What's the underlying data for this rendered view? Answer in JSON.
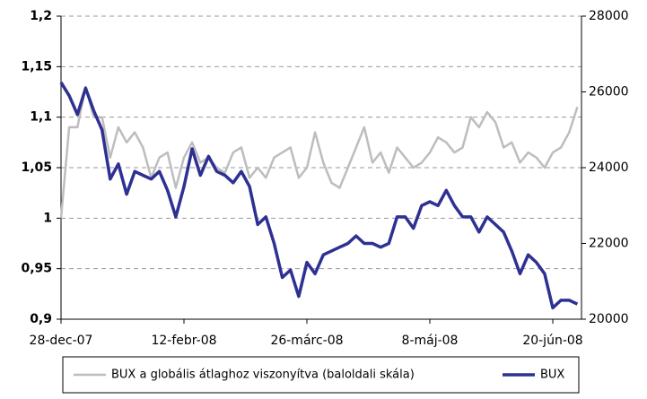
{
  "chart_data": {
    "type": "line",
    "categories": [
      "28-dec-07",
      null,
      null,
      null,
      null,
      null,
      null,
      null,
      null,
      null,
      null,
      null,
      null,
      null,
      null,
      "12-febr-08",
      null,
      null,
      null,
      null,
      null,
      null,
      null,
      null,
      null,
      null,
      null,
      null,
      null,
      null,
      "26-márc-08",
      null,
      null,
      null,
      null,
      null,
      null,
      null,
      null,
      null,
      null,
      null,
      null,
      null,
      null,
      "8-máj-08",
      null,
      null,
      null,
      null,
      null,
      null,
      null,
      null,
      null,
      null,
      null,
      null,
      null,
      null,
      "20-jún-08",
      null,
      null,
      null
    ],
    "series": [
      {
        "name": "BUX a globális átlaghoz viszonyítva (baloldali skála)",
        "color": "#bdbdbd",
        "axis": "y",
        "values": [
          1.0,
          1.09,
          1.09,
          1.13,
          1.1,
          1.1,
          1.06,
          1.09,
          1.075,
          1.085,
          1.07,
          1.04,
          1.06,
          1.065,
          1.03,
          1.06,
          1.075,
          1.055,
          1.06,
          1.05,
          1.045,
          1.065,
          1.07,
          1.04,
          1.05,
          1.04,
          1.06,
          1.065,
          1.07,
          1.04,
          1.05,
          1.085,
          1.055,
          1.035,
          1.03,
          1.05,
          1.07,
          1.09,
          1.055,
          1.065,
          1.045,
          1.07,
          1.06,
          1.05,
          1.055,
          1.065,
          1.08,
          1.075,
          1.065,
          1.07,
          1.1,
          1.09,
          1.105,
          1.095,
          1.07,
          1.075,
          1.055,
          1.065,
          1.06,
          1.05,
          1.065,
          1.07,
          1.085,
          1.11
        ]
      },
      {
        "name": "BUX",
        "color": "#2e3192",
        "axis": "y2",
        "values": [
          26250,
          25900,
          25400,
          26100,
          25500,
          25000,
          23700,
          24100,
          23300,
          23900,
          23800,
          23700,
          23900,
          23400,
          22700,
          23500,
          24500,
          23800,
          24300,
          23900,
          23800,
          23600,
          23900,
          23500,
          22500,
          22700,
          22000,
          21100,
          21300,
          20600,
          21500,
          21200,
          21700,
          21800,
          21900,
          22000,
          22200,
          22000,
          22000,
          21900,
          22000,
          22700,
          22700,
          22400,
          23000,
          23100,
          23000,
          23400,
          23000,
          22700,
          22700,
          22300,
          22700,
          22500,
          22300,
          21800,
          21200,
          21700,
          21500,
          21200,
          20300,
          20500,
          20500,
          20400
        ]
      }
    ],
    "ylim": [
      0.9,
      1.2
    ],
    "yticks": [
      {
        "value": 0.9,
        "label": "0,9"
      },
      {
        "value": 0.95,
        "label": "0,95"
      },
      1,
      {
        "value": 1.05,
        "label": "1,05"
      },
      {
        "value": 1.1,
        "label": "1,1"
      },
      {
        "value": 1.15,
        "label": "1,15"
      },
      {
        "value": 1.2,
        "label": "1,2"
      }
    ],
    "y2lim": [
      20000,
      28000
    ],
    "y2ticks": [
      20000,
      22000,
      24000,
      26000,
      28000
    ],
    "grid": true,
    "legend": "bottom"
  }
}
